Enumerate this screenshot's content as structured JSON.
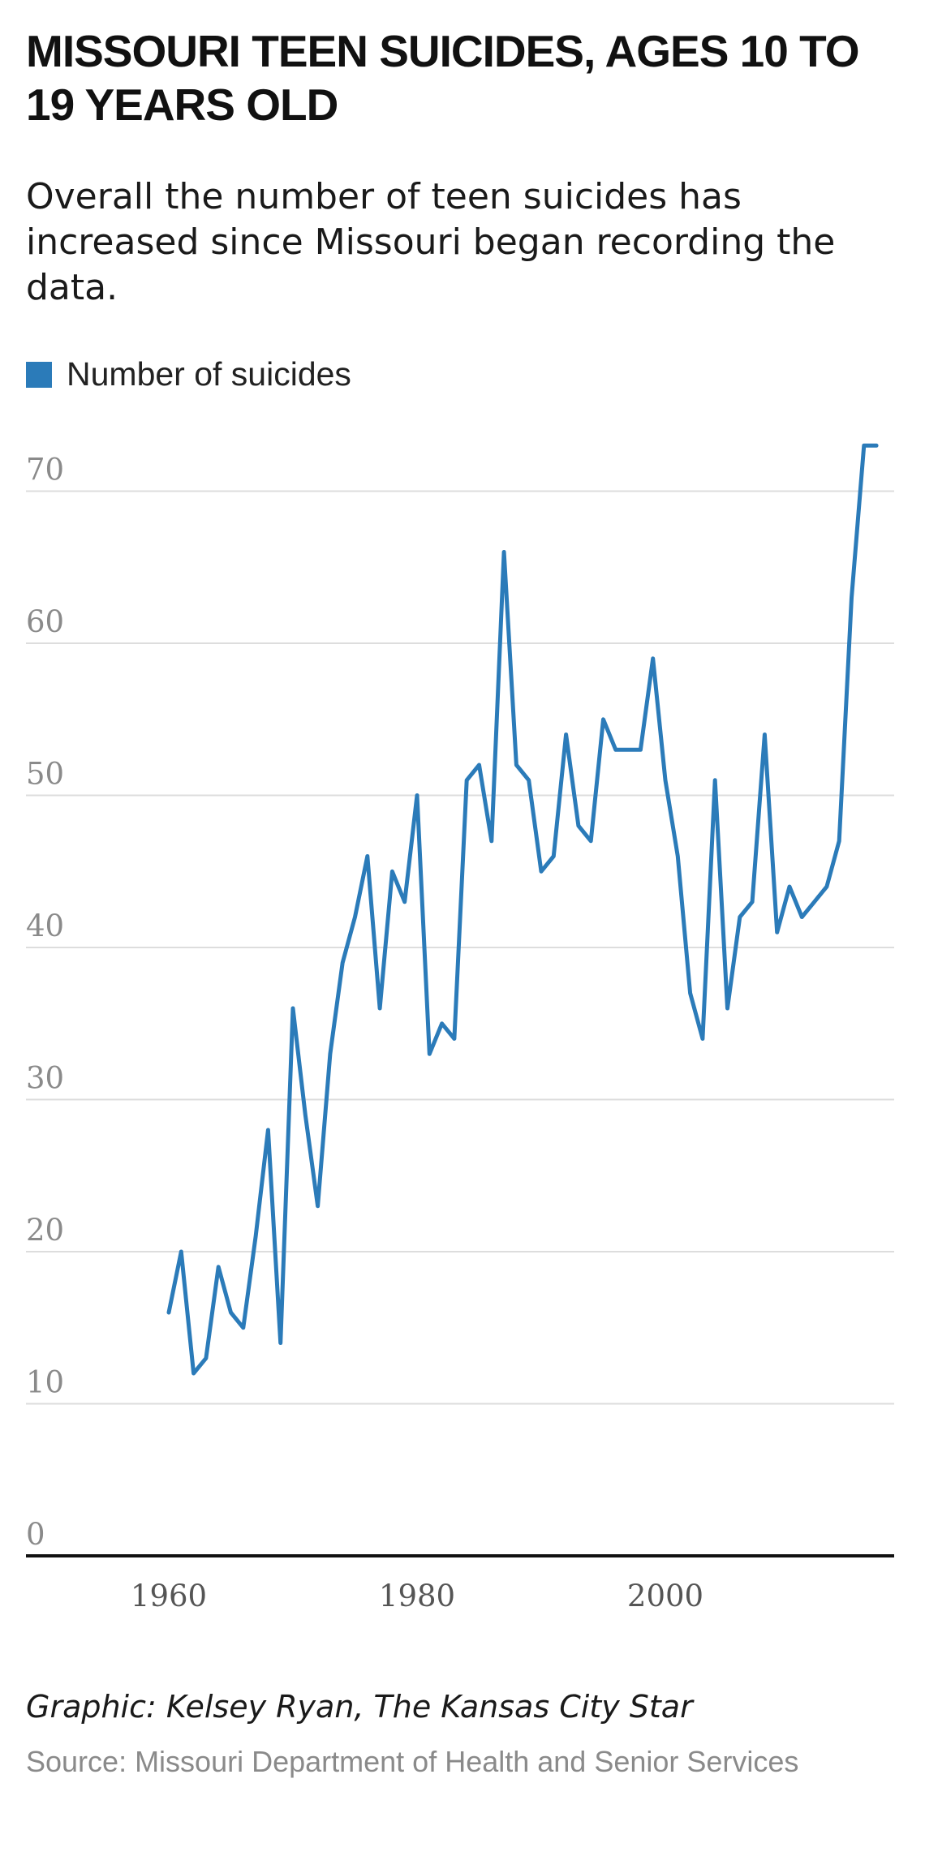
{
  "header": {
    "title": "MISSOURI TEEN SUICIDES, AGES 10 TO 19 YEARS OLD",
    "subtitle": "Overall the number of teen suicides has increased since Missouri began recording the data."
  },
  "footer": {
    "credit": "Graphic: Kelsey Ryan, The Kansas City Star",
    "source": "Source: Missouri Department of Health and Senior Services"
  },
  "colors": {
    "line": "#2b7bb9",
    "grid": "#dddddd",
    "axis": "#111111"
  },
  "chart_data": {
    "type": "line",
    "title": "MISSOURI TEEN SUICIDES, AGES 10 TO 19 YEARS OLD",
    "subtitle": "Overall the number of teen suicides has increased since Missouri began recording the data.",
    "legend": "top-left",
    "grid": true,
    "xlabel": "",
    "ylabel": "",
    "xlim": [
      1958,
      2019
    ],
    "ylim": [
      0,
      73
    ],
    "yticks": [
      0,
      10,
      20,
      30,
      40,
      50,
      60,
      70
    ],
    "xticks": [
      1960,
      1980,
      2000
    ],
    "x": [
      1960,
      1961,
      1962,
      1963,
      1964,
      1965,
      1966,
      1967,
      1968,
      1969,
      1970,
      1971,
      1972,
      1973,
      1974,
      1975,
      1976,
      1977,
      1978,
      1979,
      1980,
      1981,
      1982,
      1983,
      1984,
      1985,
      1986,
      1987,
      1988,
      1989,
      1990,
      1991,
      1992,
      1993,
      1994,
      1995,
      1996,
      1997,
      1998,
      1999,
      2000,
      2001,
      2002,
      2003,
      2004,
      2005,
      2006,
      2007,
      2008,
      2009,
      2010,
      2011,
      2012,
      2013,
      2014,
      2015,
      2016,
      2017
    ],
    "series": [
      {
        "name": "Number of suicides",
        "values": [
          16,
          20,
          12,
          13,
          19,
          16,
          15,
          21,
          28,
          14,
          36,
          29,
          23,
          33,
          39,
          42,
          46,
          36,
          45,
          43,
          50,
          33,
          35,
          34,
          51,
          52,
          47,
          66,
          52,
          51,
          45,
          46,
          54,
          48,
          47,
          55,
          53,
          53,
          53,
          59,
          51,
          46,
          37,
          34,
          51,
          36,
          42,
          43,
          54,
          41,
          44,
          42,
          43,
          44,
          47,
          63,
          73,
          73
        ]
      }
    ]
  }
}
